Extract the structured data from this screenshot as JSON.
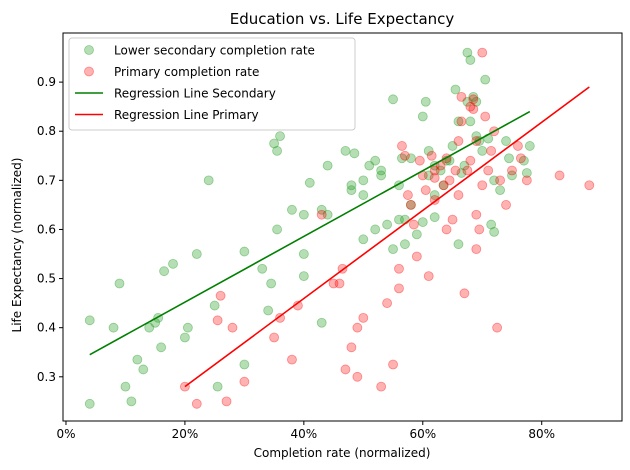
{
  "chart_data": {
    "type": "scatter",
    "title": "Education vs. Life Expectancy",
    "xlabel": "Completion rate (normalized)",
    "ylabel": "Life Expectancy (normalized)",
    "xlim": [
      -0.005,
      0.935
    ],
    "ylim": [
      0.21,
      1.0
    ],
    "xticks": [
      0,
      0.2,
      0.4,
      0.6,
      0.8
    ],
    "xtick_labels": [
      "0%",
      "20%",
      "40%",
      "60%",
      "80%"
    ],
    "yticks": [
      0.3,
      0.4,
      0.5,
      0.6,
      0.7,
      0.8,
      0.9
    ],
    "ytick_labels": [
      "0.3",
      "0.4",
      "0.5",
      "0.6",
      "0.7",
      "0.8",
      "0.9"
    ],
    "grid": false,
    "legend_position": "top-left",
    "series": [
      {
        "name": "Lower secondary completion rate",
        "kind": "scatter",
        "color": "#2ca02c",
        "opacity": 0.35,
        "points": [
          [
            0.04,
            0.245
          ],
          [
            0.04,
            0.415
          ],
          [
            0.08,
            0.4
          ],
          [
            0.09,
            0.49
          ],
          [
            0.1,
            0.28
          ],
          [
            0.11,
            0.25
          ],
          [
            0.12,
            0.335
          ],
          [
            0.13,
            0.315
          ],
          [
            0.14,
            0.4
          ],
          [
            0.15,
            0.41
          ],
          [
            0.155,
            0.42
          ],
          [
            0.16,
            0.36
          ],
          [
            0.165,
            0.515
          ],
          [
            0.18,
            0.53
          ],
          [
            0.2,
            0.38
          ],
          [
            0.205,
            0.4
          ],
          [
            0.22,
            0.55
          ],
          [
            0.24,
            0.7
          ],
          [
            0.25,
            0.445
          ],
          [
            0.255,
            0.28
          ],
          [
            0.3,
            0.325
          ],
          [
            0.3,
            0.555
          ],
          [
            0.33,
            0.52
          ],
          [
            0.34,
            0.435
          ],
          [
            0.345,
            0.49
          ],
          [
            0.35,
            0.775
          ],
          [
            0.355,
            0.76
          ],
          [
            0.355,
            0.6
          ],
          [
            0.36,
            0.79
          ],
          [
            0.38,
            0.64
          ],
          [
            0.4,
            0.505
          ],
          [
            0.4,
            0.55
          ],
          [
            0.4,
            0.63
          ],
          [
            0.41,
            0.695
          ],
          [
            0.43,
            0.41
          ],
          [
            0.43,
            0.64
          ],
          [
            0.44,
            0.73
          ],
          [
            0.47,
            0.76
          ],
          [
            0.48,
            0.68
          ],
          [
            0.48,
            0.69
          ],
          [
            0.485,
            0.755
          ],
          [
            0.5,
            0.58
          ],
          [
            0.5,
            0.7
          ],
          [
            0.51,
            0.73
          ],
          [
            0.52,
            0.74
          ],
          [
            0.52,
            0.6
          ],
          [
            0.53,
            0.72
          ],
          [
            0.53,
            0.71
          ],
          [
            0.54,
            0.61
          ],
          [
            0.55,
            0.865
          ],
          [
            0.55,
            0.56
          ],
          [
            0.56,
            0.62
          ],
          [
            0.56,
            0.69
          ],
          [
            0.565,
            0.745
          ],
          [
            0.57,
            0.62
          ],
          [
            0.57,
            0.57
          ],
          [
            0.58,
            0.745
          ],
          [
            0.59,
            0.59
          ],
          [
            0.6,
            0.615
          ],
          [
            0.6,
            0.83
          ],
          [
            0.605,
            0.86
          ],
          [
            0.61,
            0.71
          ],
          [
            0.61,
            0.76
          ],
          [
            0.62,
            0.73
          ],
          [
            0.62,
            0.67
          ],
          [
            0.63,
            0.72
          ],
          [
            0.635,
            0.69
          ],
          [
            0.64,
            0.74
          ],
          [
            0.645,
            0.74
          ],
          [
            0.65,
            0.77
          ],
          [
            0.655,
            0.885
          ],
          [
            0.66,
            0.82
          ],
          [
            0.66,
            0.57
          ],
          [
            0.665,
            0.715
          ],
          [
            0.67,
            0.73
          ],
          [
            0.675,
            0.96
          ],
          [
            0.675,
            0.86
          ],
          [
            0.68,
            0.945
          ],
          [
            0.68,
            0.82
          ],
          [
            0.685,
            0.87
          ],
          [
            0.69,
            0.79
          ],
          [
            0.69,
            0.86
          ],
          [
            0.695,
            0.78
          ],
          [
            0.7,
            0.76
          ],
          [
            0.705,
            0.905
          ],
          [
            0.71,
            0.785
          ],
          [
            0.715,
            0.61
          ],
          [
            0.72,
            0.595
          ],
          [
            0.72,
            0.7
          ],
          [
            0.73,
            0.68
          ],
          [
            0.74,
            0.78
          ],
          [
            0.745,
            0.745
          ],
          [
            0.75,
            0.71
          ],
          [
            0.77,
            0.74
          ],
          [
            0.775,
            0.715
          ],
          [
            0.78,
            0.77
          ],
          [
            0.62,
            0.625
          ],
          [
            0.58,
            0.65
          ],
          [
            0.5,
            0.67
          ],
          [
            0.44,
            0.63
          ]
        ]
      },
      {
        "name": "Primary completion rate",
        "kind": "scatter",
        "color": "#ff0000",
        "opacity": 0.3,
        "points": [
          [
            0.2,
            0.28
          ],
          [
            0.22,
            0.245
          ],
          [
            0.255,
            0.415
          ],
          [
            0.26,
            0.465
          ],
          [
            0.27,
            0.25
          ],
          [
            0.28,
            0.4
          ],
          [
            0.3,
            0.29
          ],
          [
            0.35,
            0.38
          ],
          [
            0.36,
            0.42
          ],
          [
            0.38,
            0.335
          ],
          [
            0.39,
            0.445
          ],
          [
            0.43,
            0.63
          ],
          [
            0.45,
            0.49
          ],
          [
            0.46,
            0.49
          ],
          [
            0.465,
            0.52
          ],
          [
            0.47,
            0.315
          ],
          [
            0.48,
            0.36
          ],
          [
            0.49,
            0.4
          ],
          [
            0.49,
            0.3
          ],
          [
            0.5,
            0.42
          ],
          [
            0.53,
            0.28
          ],
          [
            0.54,
            0.45
          ],
          [
            0.55,
            0.325
          ],
          [
            0.56,
            0.52
          ],
          [
            0.56,
            0.48
          ],
          [
            0.565,
            0.77
          ],
          [
            0.57,
            0.75
          ],
          [
            0.575,
            0.67
          ],
          [
            0.58,
            0.65
          ],
          [
            0.585,
            0.61
          ],
          [
            0.59,
            0.545
          ],
          [
            0.595,
            0.74
          ],
          [
            0.6,
            0.71
          ],
          [
            0.605,
            0.68
          ],
          [
            0.61,
            0.505
          ],
          [
            0.615,
            0.75
          ],
          [
            0.62,
            0.705
          ],
          [
            0.62,
            0.66
          ],
          [
            0.63,
            0.73
          ],
          [
            0.635,
            0.69
          ],
          [
            0.64,
            0.6
          ],
          [
            0.645,
            0.7
          ],
          [
            0.65,
            0.62
          ],
          [
            0.655,
            0.72
          ],
          [
            0.66,
            0.67
          ],
          [
            0.66,
            0.78
          ],
          [
            0.665,
            0.87
          ],
          [
            0.67,
            0.47
          ],
          [
            0.675,
            0.72
          ],
          [
            0.68,
            0.74
          ],
          [
            0.685,
            0.845
          ],
          [
            0.69,
            0.63
          ],
          [
            0.69,
            0.78
          ],
          [
            0.695,
            0.6
          ],
          [
            0.7,
            0.96
          ],
          [
            0.7,
            0.69
          ],
          [
            0.705,
            0.83
          ],
          [
            0.71,
            0.72
          ],
          [
            0.715,
            0.76
          ],
          [
            0.72,
            0.8
          ],
          [
            0.725,
            0.4
          ],
          [
            0.73,
            0.7
          ],
          [
            0.74,
            0.65
          ],
          [
            0.75,
            0.72
          ],
          [
            0.76,
            0.77
          ],
          [
            0.765,
            0.745
          ],
          [
            0.775,
            0.7
          ],
          [
            0.83,
            0.71
          ],
          [
            0.88,
            0.69
          ],
          [
            0.665,
            0.82
          ],
          [
            0.68,
            0.85
          ],
          [
            0.685,
            0.865
          ],
          [
            0.69,
            0.56
          ],
          [
            0.64,
            0.745
          ],
          [
            0.62,
            0.72
          ]
        ]
      },
      {
        "name": "Regression Line Secondary",
        "kind": "line",
        "color": "#008000",
        "points": [
          [
            0.04,
            0.345
          ],
          [
            0.78,
            0.84
          ]
        ]
      },
      {
        "name": "Regression Line Primary",
        "kind": "line",
        "color": "#ff0000",
        "points": [
          [
            0.2,
            0.28
          ],
          [
            0.88,
            0.89
          ]
        ]
      }
    ]
  }
}
